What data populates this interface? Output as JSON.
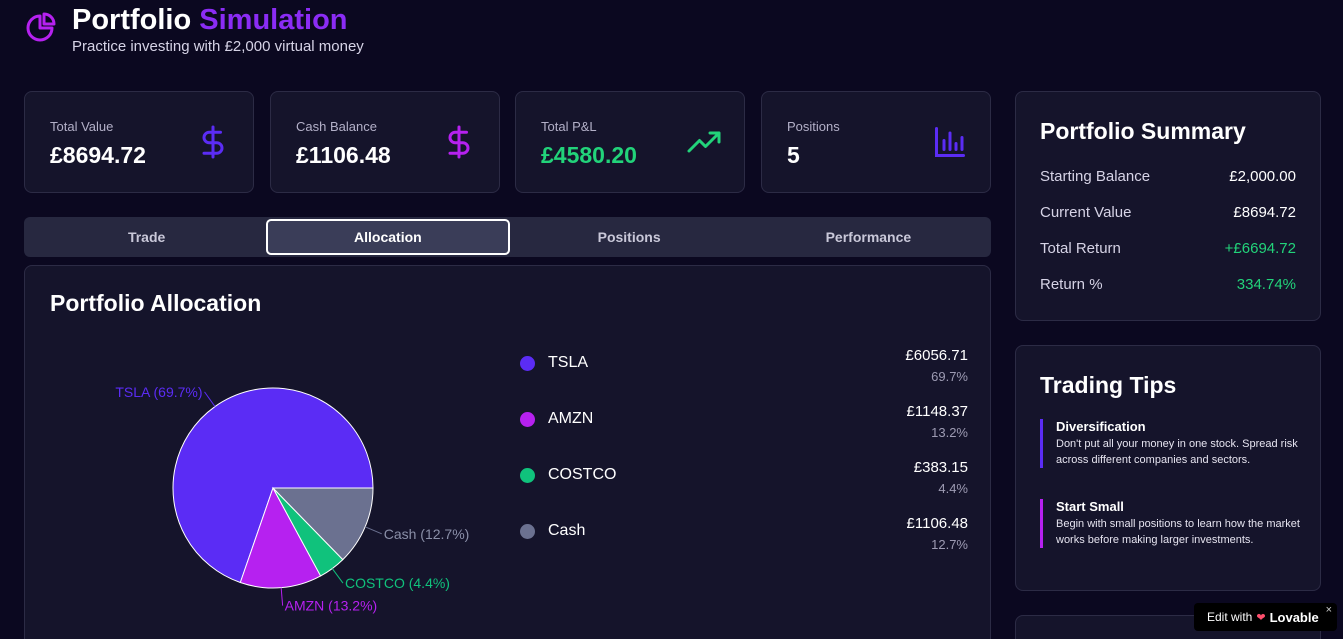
{
  "header": {
    "title_main": "Portfolio",
    "title_accent": "Simulation",
    "subtitle": "Practice investing with £2,000 virtual money"
  },
  "stats": [
    {
      "label": "Total Value",
      "value": "£8694.72",
      "icon": "dollar-icon",
      "value_color": "#ffffff",
      "icon_color": "#5b2cf5"
    },
    {
      "label": "Cash Balance",
      "value": "£1106.48",
      "icon": "dollar-icon",
      "value_color": "#ffffff",
      "icon_color": "#b621f0"
    },
    {
      "label": "Total P&L",
      "value": "£4580.20",
      "icon": "trending-up-icon",
      "value_color": "#22d37a",
      "icon_color": "#22d37a"
    },
    {
      "label": "Positions",
      "value": "5",
      "icon": "bar-chart-icon",
      "value_color": "#ffffff",
      "icon_color": "#5b2cf5"
    }
  ],
  "tabs": [
    {
      "label": "Trade",
      "active": false
    },
    {
      "label": "Allocation",
      "active": true
    },
    {
      "label": "Positions",
      "active": false
    },
    {
      "label": "Performance",
      "active": false
    }
  ],
  "allocation": {
    "title": "Portfolio Allocation",
    "holdings": [
      {
        "name": "TSLA",
        "amount": "£6056.71",
        "percent_label": "69.7%",
        "pie_label": "TSLA (69.7%)",
        "color": "#5b2cf5",
        "value": 69.7
      },
      {
        "name": "AMZN",
        "amount": "£1148.37",
        "percent_label": "13.2%",
        "pie_label": "AMZN (13.2%)",
        "color": "#b621f0",
        "value": 13.2
      },
      {
        "name": "COSTCO",
        "amount": "£383.15",
        "percent_label": "4.4%",
        "pie_label": "COSTCO (4.4%)",
        "color": "#10c27c",
        "value": 4.4
      },
      {
        "name": "Cash",
        "amount": "£1106.48",
        "percent_label": "12.7%",
        "pie_label": "Cash (12.7%)",
        "color": "#6b7190",
        "value": 12.7
      }
    ]
  },
  "chart_data": {
    "type": "pie",
    "categories": [
      "TSLA",
      "AMZN",
      "COSTCO",
      "Cash"
    ],
    "values": [
      69.7,
      13.2,
      4.4,
      12.7
    ],
    "title": "Portfolio Allocation"
  },
  "summary": {
    "title": "Portfolio Summary",
    "rows": [
      {
        "label": "Starting Balance",
        "value": "£2,000.00",
        "positive": false
      },
      {
        "label": "Current Value",
        "value": "£8694.72",
        "positive": false
      },
      {
        "label": "Total Return",
        "value": "+£6694.72",
        "positive": true
      },
      {
        "label": "Return %",
        "value": "334.74%",
        "positive": true
      }
    ]
  },
  "tips": {
    "title": "Trading Tips",
    "items": [
      {
        "heading": "Diversification",
        "body": "Don't put all your money in one stock. Spread risk across different companies and sectors."
      },
      {
        "heading": "Start Small",
        "body": "Begin with small positions to learn how the market works before making larger investments."
      }
    ]
  },
  "badge": {
    "prefix": "Edit with",
    "brand": "Lovable",
    "close": "×"
  }
}
